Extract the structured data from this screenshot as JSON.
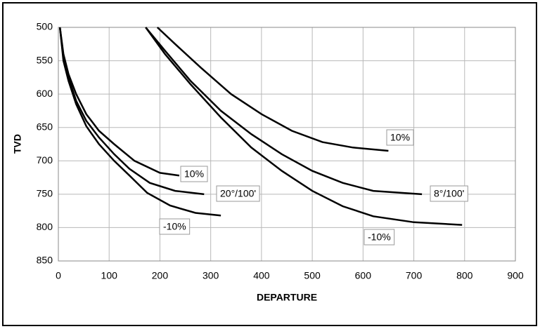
{
  "chart_data": {
    "type": "line",
    "x_label": "DEPARTURE",
    "y_label": "TVD",
    "xlim": [
      0,
      900
    ],
    "xticks": [
      0,
      100,
      200,
      300,
      400,
      500,
      600,
      700,
      800,
      900
    ],
    "ylim": [
      500,
      850
    ],
    "yticks": [
      500,
      550,
      600,
      650,
      700,
      750,
      800,
      850
    ],
    "y_inverted": true,
    "grid": true,
    "series": [
      {
        "name": "10%",
        "color": "#000000",
        "x": [
          3,
          10,
          20,
          35,
          55,
          80,
          110,
          150,
          200,
          238
        ],
        "values": [
          500,
          540,
          570,
          600,
          630,
          655,
          675,
          700,
          718,
          722
        ]
      },
      {
        "name": "20°/100'",
        "color": "#000000",
        "x": [
          3,
          10,
          20,
          35,
          55,
          80,
          110,
          140,
          180,
          230,
          287
        ],
        "values": [
          500,
          545,
          575,
          610,
          640,
          665,
          690,
          712,
          733,
          745,
          750
        ]
      },
      {
        "name": "-10%",
        "color": "#000000",
        "x": [
          3,
          10,
          20,
          35,
          55,
          80,
          110,
          140,
          175,
          220,
          270,
          320
        ],
        "values": [
          500,
          550,
          580,
          615,
          648,
          675,
          700,
          722,
          748,
          767,
          778,
          782
        ]
      },
      {
        "name": "10%",
        "color": "#000000",
        "x": [
          195,
          230,
          280,
          340,
          400,
          460,
          520,
          580,
          650
        ],
        "values": [
          500,
          525,
          560,
          600,
          630,
          655,
          672,
          680,
          685
        ]
      },
      {
        "name": "8°/100'",
        "color": "#000000",
        "x": [
          172,
          210,
          260,
          320,
          380,
          440,
          500,
          560,
          620,
          716
        ],
        "values": [
          500,
          535,
          580,
          625,
          660,
          690,
          715,
          733,
          745,
          750
        ]
      },
      {
        "name": "-10%",
        "color": "#000000",
        "x": [
          172,
          210,
          260,
          320,
          380,
          440,
          500,
          560,
          620,
          700,
          795
        ],
        "values": [
          500,
          540,
          585,
          635,
          680,
          715,
          745,
          768,
          783,
          792,
          796
        ]
      }
    ]
  }
}
